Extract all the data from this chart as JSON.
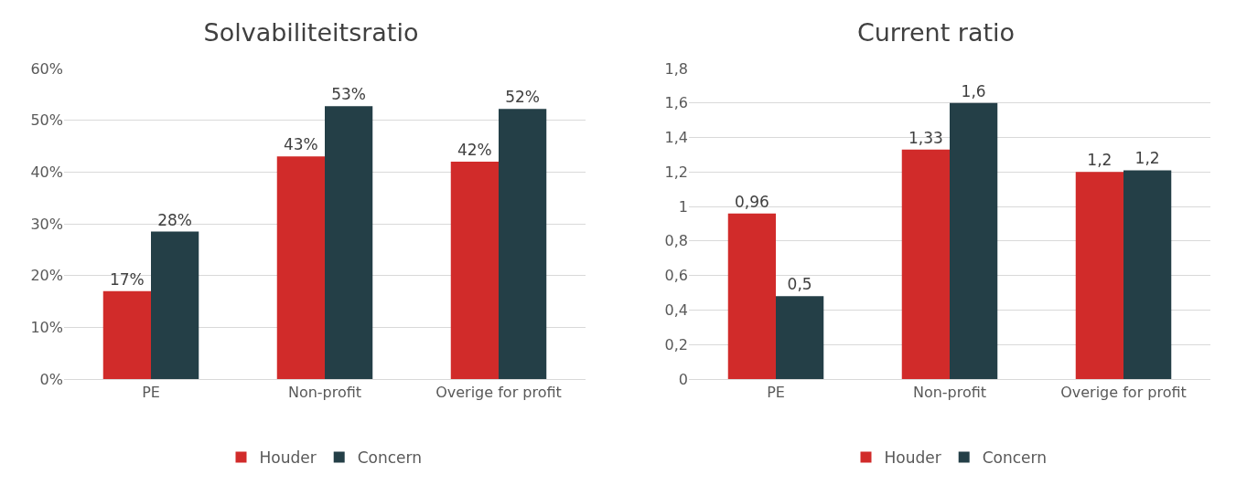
{
  "chart_data": [
    {
      "type": "bar",
      "title": "Solvabiliteitsratio",
      "categories": [
        "PE",
        "Non-profit",
        "Overige for profit"
      ],
      "series": [
        {
          "name": "Houder",
          "color": "#d12b2a",
          "values": [
            17,
            43,
            42
          ],
          "value_labels": [
            "17%",
            "43%",
            "42%"
          ]
        },
        {
          "name": "Concern",
          "color": "#243f47",
          "values": [
            28.5,
            52.7,
            52.2
          ],
          "value_labels": [
            "28%",
            "53%",
            "52%"
          ]
        }
      ],
      "ylim": [
        0,
        60
      ],
      "yticks": [
        {
          "value": 0,
          "label": "0%"
        },
        {
          "value": 10,
          "label": "10%"
        },
        {
          "value": 20,
          "label": "20%"
        },
        {
          "value": 30,
          "label": "30%"
        },
        {
          "value": 40,
          "label": "40%"
        },
        {
          "value": 50,
          "label": "50%"
        },
        {
          "value": 60,
          "label": "60%"
        }
      ],
      "grid": "y",
      "legend": "bottom"
    },
    {
      "type": "bar",
      "title": "Current ratio",
      "categories": [
        "PE",
        "Non-profit",
        "Overige for profit"
      ],
      "series": [
        {
          "name": "Houder",
          "color": "#d12b2a",
          "values": [
            0.96,
            1.33,
            1.2
          ],
          "value_labels": [
            "0,96",
            "1,33",
            "1,2"
          ]
        },
        {
          "name": "Concern",
          "color": "#243f47",
          "values": [
            0.48,
            1.6,
            1.21
          ],
          "value_labels": [
            "0,5",
            "1,6",
            "1,2"
          ]
        }
      ],
      "ylim": [
        0,
        1.8
      ],
      "yticks": [
        0,
        {
          "value": 0.2,
          "label": "0,2"
        },
        {
          "value": 0.4,
          "label": "0,4"
        },
        {
          "value": 0.6,
          "label": "0,6"
        },
        {
          "value": 0.8,
          "label": "0,8"
        },
        1,
        {
          "value": 1.2,
          "label": "1,2"
        },
        {
          "value": 1.4,
          "label": "1,4"
        },
        {
          "value": 1.6,
          "label": "1,6"
        },
        {
          "value": 1.8,
          "label": "1,8"
        }
      ],
      "grid": "y",
      "legend": "bottom"
    }
  ]
}
